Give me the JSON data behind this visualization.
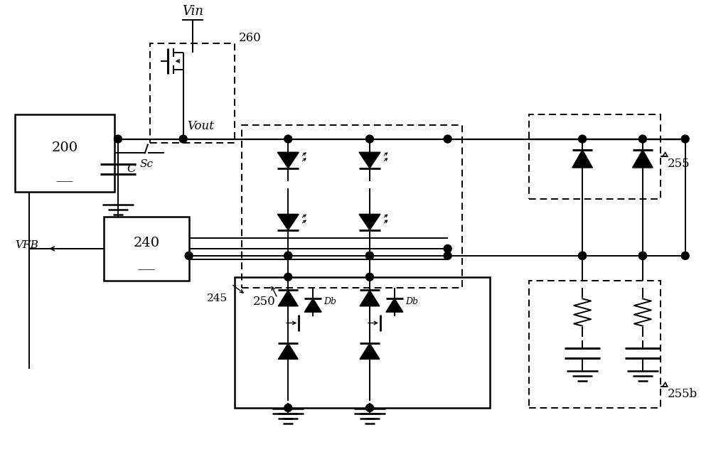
{
  "bg_color": "#ffffff",
  "lc": "#000000",
  "fig_width": 10.0,
  "fig_height": 6.6,
  "dpi": 100,
  "labels": {
    "vin": "Vin",
    "vout": "Vout",
    "vfb": "VFB",
    "sc": "Sc",
    "c": "C",
    "n200": "200",
    "n240": "240",
    "n245": "245",
    "n250": "250",
    "n255": "255",
    "n255b": "255b",
    "n260": "260",
    "db": "Db"
  }
}
